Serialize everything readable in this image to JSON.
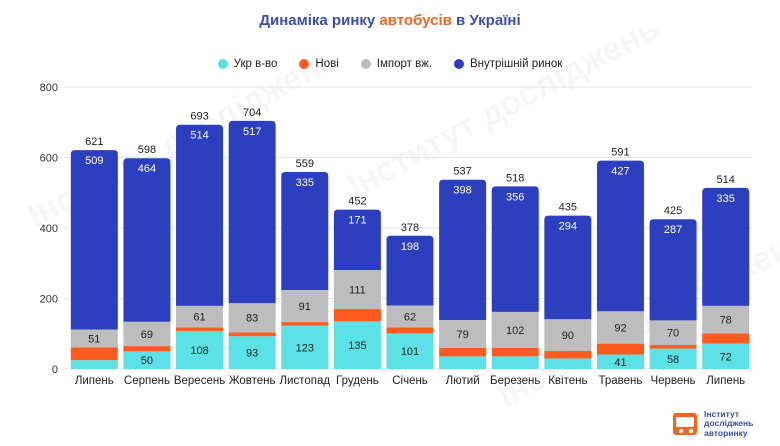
{
  "title": {
    "prefix": "Динаміка ринку ",
    "accent": "автобусів",
    "suffix": " в Україні"
  },
  "logo": {
    "line1": "Інститут",
    "line2": "досліджень",
    "line3": "авторинку"
  },
  "colors": {
    "ukr": "#5ce1e6",
    "new": "#ff5a1f",
    "import": "#bdbdbd",
    "total": "#2c3fbf",
    "title": "#3b4fa8",
    "accent": "#f26522"
  },
  "chart_data": {
    "type": "bar",
    "title": "Динаміка ринку автобусів в Україні",
    "ylim": [
      0,
      800
    ],
    "yticks": [
      0,
      200,
      400,
      600,
      800
    ],
    "legend": [
      "Укр в-во",
      "Нові",
      "Імпорт вж.",
      "Внутрішній ринок"
    ],
    "legend_position": "top-center",
    "categories": [
      "Липень",
      "Серпень",
      "Вересень",
      "Жовтень",
      "Листопад",
      "Грудень",
      "Січень",
      "Лютий",
      "Березень",
      "Квітень",
      "Травень",
      "Червень",
      "Липень"
    ],
    "series": [
      {
        "name": "Укр в-во",
        "values": [
          25,
          50,
          108,
          93,
          123,
          135,
          101,
          36,
          36,
          30,
          41,
          58,
          72
        ],
        "labels": [
          "",
          "50",
          "108",
          "93",
          "123",
          "135",
          "101",
          "",
          "",
          "",
          "41",
          "58",
          "72"
        ]
      },
      {
        "name": "Нові",
        "values": [
          36,
          15,
          10,
          11,
          10,
          35,
          17,
          24,
          24,
          21,
          31,
          10,
          29
        ],
        "labels": [
          "",
          "",
          "",
          "",
          "",
          "",
          "",
          "",
          "",
          "",
          "",
          "",
          ""
        ]
      },
      {
        "name": "Імпорт вж.",
        "values": [
          51,
          69,
          61,
          83,
          91,
          111,
          62,
          79,
          102,
          90,
          92,
          70,
          78
        ],
        "labels": [
          "51",
          "69",
          "61",
          "83",
          "91",
          "111",
          "62",
          "79",
          "102",
          "90",
          "92",
          "70",
          "78"
        ]
      },
      {
        "name": "Внутрішній ринок",
        "values": [
          509,
          464,
          514,
          517,
          335,
          171,
          198,
          398,
          356,
          294,
          427,
          287,
          335
        ],
        "labels": [
          "509",
          "464",
          "514",
          "517",
          "335",
          "171",
          "198",
          "398",
          "356",
          "294",
          "427",
          "287",
          "335"
        ]
      }
    ],
    "totals": [
      621,
      598,
      693,
      704,
      559,
      452,
      378,
      537,
      518,
      435,
      591,
      425,
      514
    ]
  }
}
